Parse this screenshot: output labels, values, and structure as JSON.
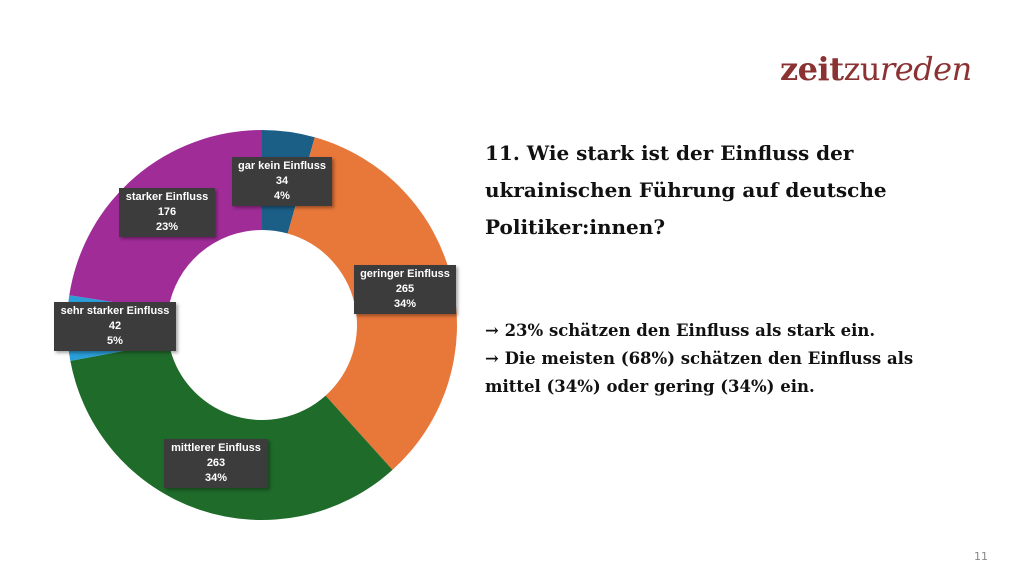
{
  "logo": {
    "part1": "zeit",
    "part2": "zu",
    "part3": "reden"
  },
  "title": "11. Wie stark ist der Einfluss der ukrainischen Führung auf deutsche Politiker:innen?",
  "bullets": [
    "→ 23% schätzen den Einfluss als stark ein.",
    "→ Die meisten (68%) schätzen den Einfluss als mittel (34%) oder gering (34%) ein."
  ],
  "page_number": "11",
  "chart_data": {
    "type": "pie",
    "donut": true,
    "title": "",
    "categories": [
      "gar kein Einfluss",
      "geringer Einfluss",
      "mittlerer Einfluss",
      "sehr starker Einfluss",
      "starker Einfluss"
    ],
    "values": [
      34,
      265,
      263,
      42,
      176
    ],
    "percent_labels": [
      "4%",
      "34%",
      "34%",
      "5%",
      "23%"
    ],
    "colors": [
      "#1b5e86",
      "#e8773a",
      "#1f6b2a",
      "#2a9ed8",
      "#a02c98"
    ]
  }
}
